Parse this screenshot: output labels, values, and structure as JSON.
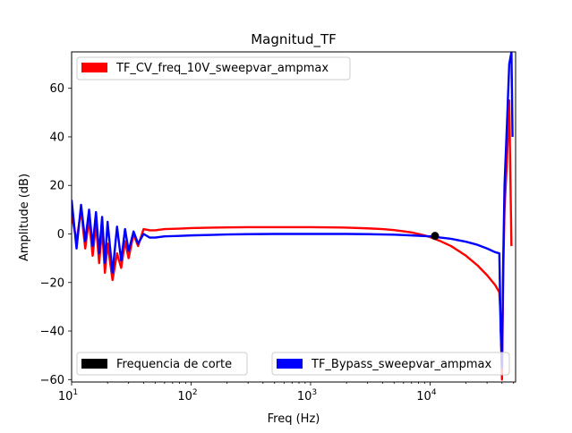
{
  "chart_data": {
    "type": "line",
    "title": "Magnitud_TF",
    "xlabel": "Freq (Hz)",
    "ylabel": "Amplitude (dB)",
    "xscale": "log",
    "xlim": [
      10,
      52000
    ],
    "ylim": [
      -61,
      75
    ],
    "x_ticks": [
      10,
      100,
      1000,
      10000
    ],
    "x_tick_labels": [
      {
        "base": "10",
        "exp": "1"
      },
      {
        "base": "10",
        "exp": "2"
      },
      {
        "base": "10",
        "exp": "3"
      },
      {
        "base": "10",
        "exp": "4"
      }
    ],
    "y_ticks": [
      -60,
      -40,
      -20,
      0,
      20,
      40,
      60
    ],
    "y_tick_labels": [
      "−60",
      "−40",
      "−20",
      "0",
      "20",
      "40",
      "60"
    ],
    "grid": false,
    "series": [
      {
        "name": "TF_CV_freq_10V_sweepvar_ampmax",
        "color": "#ff0000",
        "legend_location": "upper left",
        "x": [
          10,
          11,
          12,
          13,
          14,
          15,
          16,
          17,
          18,
          19,
          20,
          22,
          24,
          26,
          28,
          30,
          33,
          36,
          40,
          45,
          50,
          60,
          80,
          100,
          150,
          200,
          300,
          500,
          700,
          1000,
          1500,
          2000,
          3000,
          4000,
          5000,
          6000,
          7000,
          8000,
          9000,
          10000,
          12000,
          15000,
          18000,
          20000,
          25000,
          30000,
          35000,
          38000,
          39000,
          40000,
          41000,
          42000,
          44000,
          46000,
          48000
        ],
        "y": [
          8,
          -3,
          10,
          -6,
          6,
          -9,
          4,
          -12,
          2,
          -16,
          -4,
          -19,
          -8,
          -14,
          -3,
          -10,
          0,
          -5,
          2,
          1.5,
          1.5,
          2,
          2.2,
          2.4,
          2.6,
          2.7,
          2.8,
          2.8,
          2.8,
          2.8,
          2.7,
          2.6,
          2.3,
          2.0,
          1.6,
          1.1,
          0.6,
          0.0,
          -0.6,
          -1.3,
          -2.8,
          -5.0,
          -7.5,
          -9.0,
          -13,
          -17,
          -21,
          -24,
          -35,
          -60,
          -15,
          10,
          30,
          55,
          -5
        ]
      },
      {
        "name": "TF_Bypass_sweepvar_ampmax",
        "color": "#0000ff",
        "legend_location": "lower right",
        "x": [
          10,
          11,
          12,
          13,
          14,
          15,
          16,
          17,
          18,
          19,
          20,
          22,
          24,
          26,
          28,
          30,
          33,
          36,
          40,
          45,
          50,
          60,
          80,
          100,
          150,
          200,
          300,
          500,
          1000,
          2000,
          3000,
          5000,
          7000,
          10000,
          15000,
          20000,
          25000,
          30000,
          35000,
          38000,
          39000,
          40000,
          41000,
          42000,
          44000,
          46000,
          48000,
          49000
        ],
        "y": [
          14,
          -6,
          12,
          -3,
          10,
          -5,
          9,
          -8,
          7,
          -12,
          5,
          -16,
          3,
          -11,
          2,
          -7,
          1,
          -4,
          0,
          -1.5,
          -1.5,
          -1.0,
          -0.8,
          -0.6,
          -0.4,
          -0.2,
          -0.1,
          0,
          0,
          0,
          -0.1,
          -0.3,
          -0.6,
          -1.0,
          -2.0,
          -3.2,
          -4.5,
          -6.0,
          -7.5,
          -8.0,
          -40,
          -55,
          -10,
          20,
          45,
          70,
          75,
          40
        ]
      },
      {
        "name": "Frequencia de corte",
        "color": "#000000",
        "legend_location": "lower left",
        "marker": "circle",
        "x": [
          11000
        ],
        "y": [
          -0.8
        ]
      }
    ]
  }
}
